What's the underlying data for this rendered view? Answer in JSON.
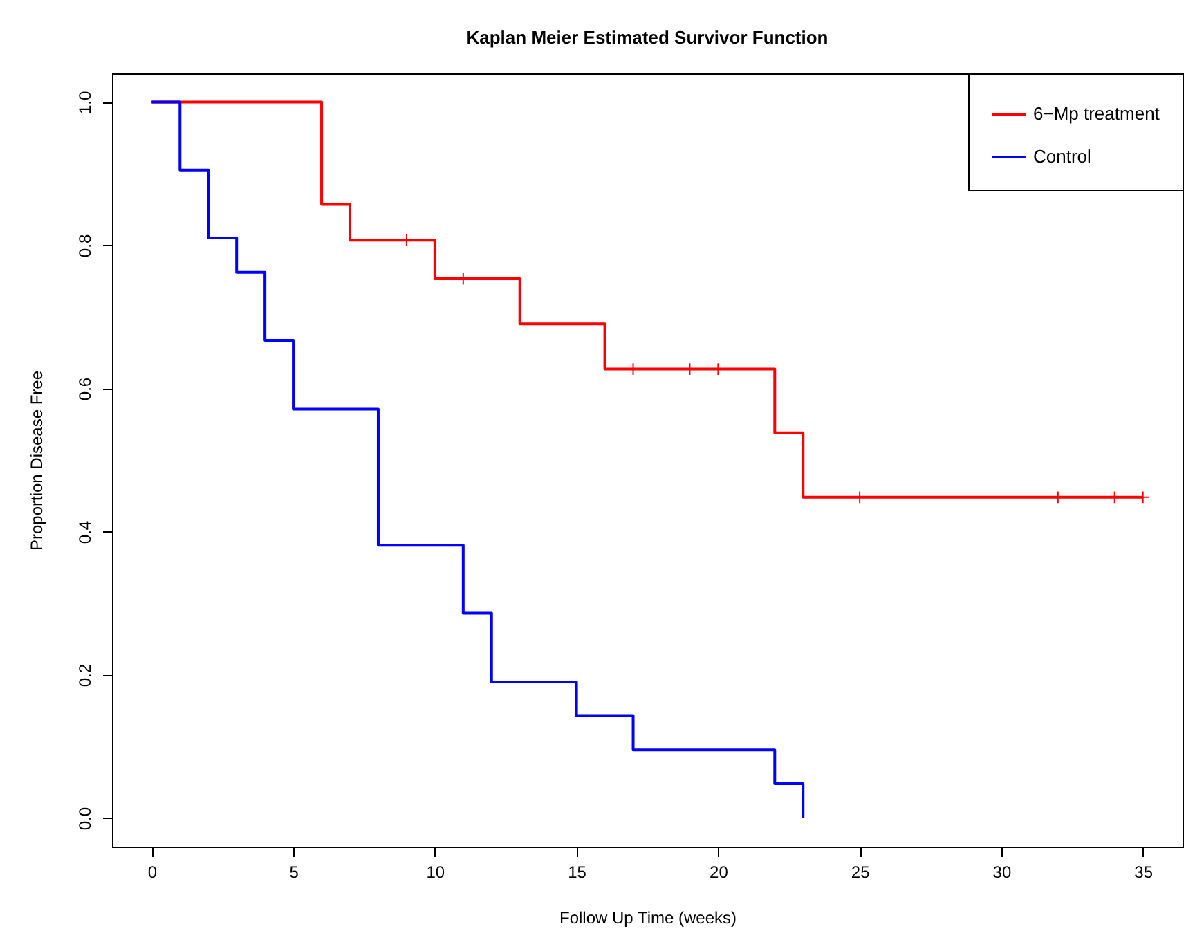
{
  "chart_data": {
    "type": "step",
    "title": "Kaplan Meier Estimated Survivor Function",
    "xlabel": "Follow Up Time (weeks)",
    "ylabel": "Proportion Disease Free",
    "series": [
      {
        "name": "6−Mp treatment",
        "color": "#ff0000",
        "x": [
          0,
          6,
          7,
          10,
          13,
          16,
          22,
          23,
          35
        ],
        "values": [
          1,
          0.857,
          0.807,
          0.753,
          0.69,
          0.627,
          0.538,
          0.448,
          0.448
        ]
      },
      {
        "name": "Control",
        "color": "#0000ff",
        "x": [
          0,
          1,
          2,
          3,
          4,
          5,
          8,
          11,
          12,
          15,
          17,
          22,
          23
        ],
        "values": [
          1,
          0.905,
          0.81,
          0.762,
          0.667,
          0.571,
          0.381,
          0.286,
          0.19,
          0.143,
          0.095,
          0.048,
          0
        ]
      },
      {
        "type": "scatter",
        "marker": "cross",
        "color": "#ff0000",
        "x": [
          9,
          11,
          17,
          19,
          20,
          25,
          32,
          34,
          35
        ],
        "values": [
          0.807,
          0.753,
          0.627,
          0.627,
          0.627,
          0.448,
          0.448,
          0.448,
          0.448
        ]
      }
    ],
    "xlim": [
      -1.4,
      36.4
    ],
    "ylim": [
      -0.04,
      1.04
    ],
    "xticks": [
      0,
      5,
      10,
      15,
      20,
      25,
      30,
      35
    ],
    "yticks": [
      {
        "value": 0,
        "label": "0.0"
      },
      {
        "value": 0.2,
        "label": "0.2"
      },
      {
        "value": 0.4,
        "label": "0.4"
      },
      {
        "value": 0.6,
        "label": "0.6"
      },
      {
        "value": 0.8,
        "label": "0.8"
      },
      {
        "value": 1,
        "label": "1.0"
      }
    ],
    "legend": "top right",
    "grid": false
  }
}
